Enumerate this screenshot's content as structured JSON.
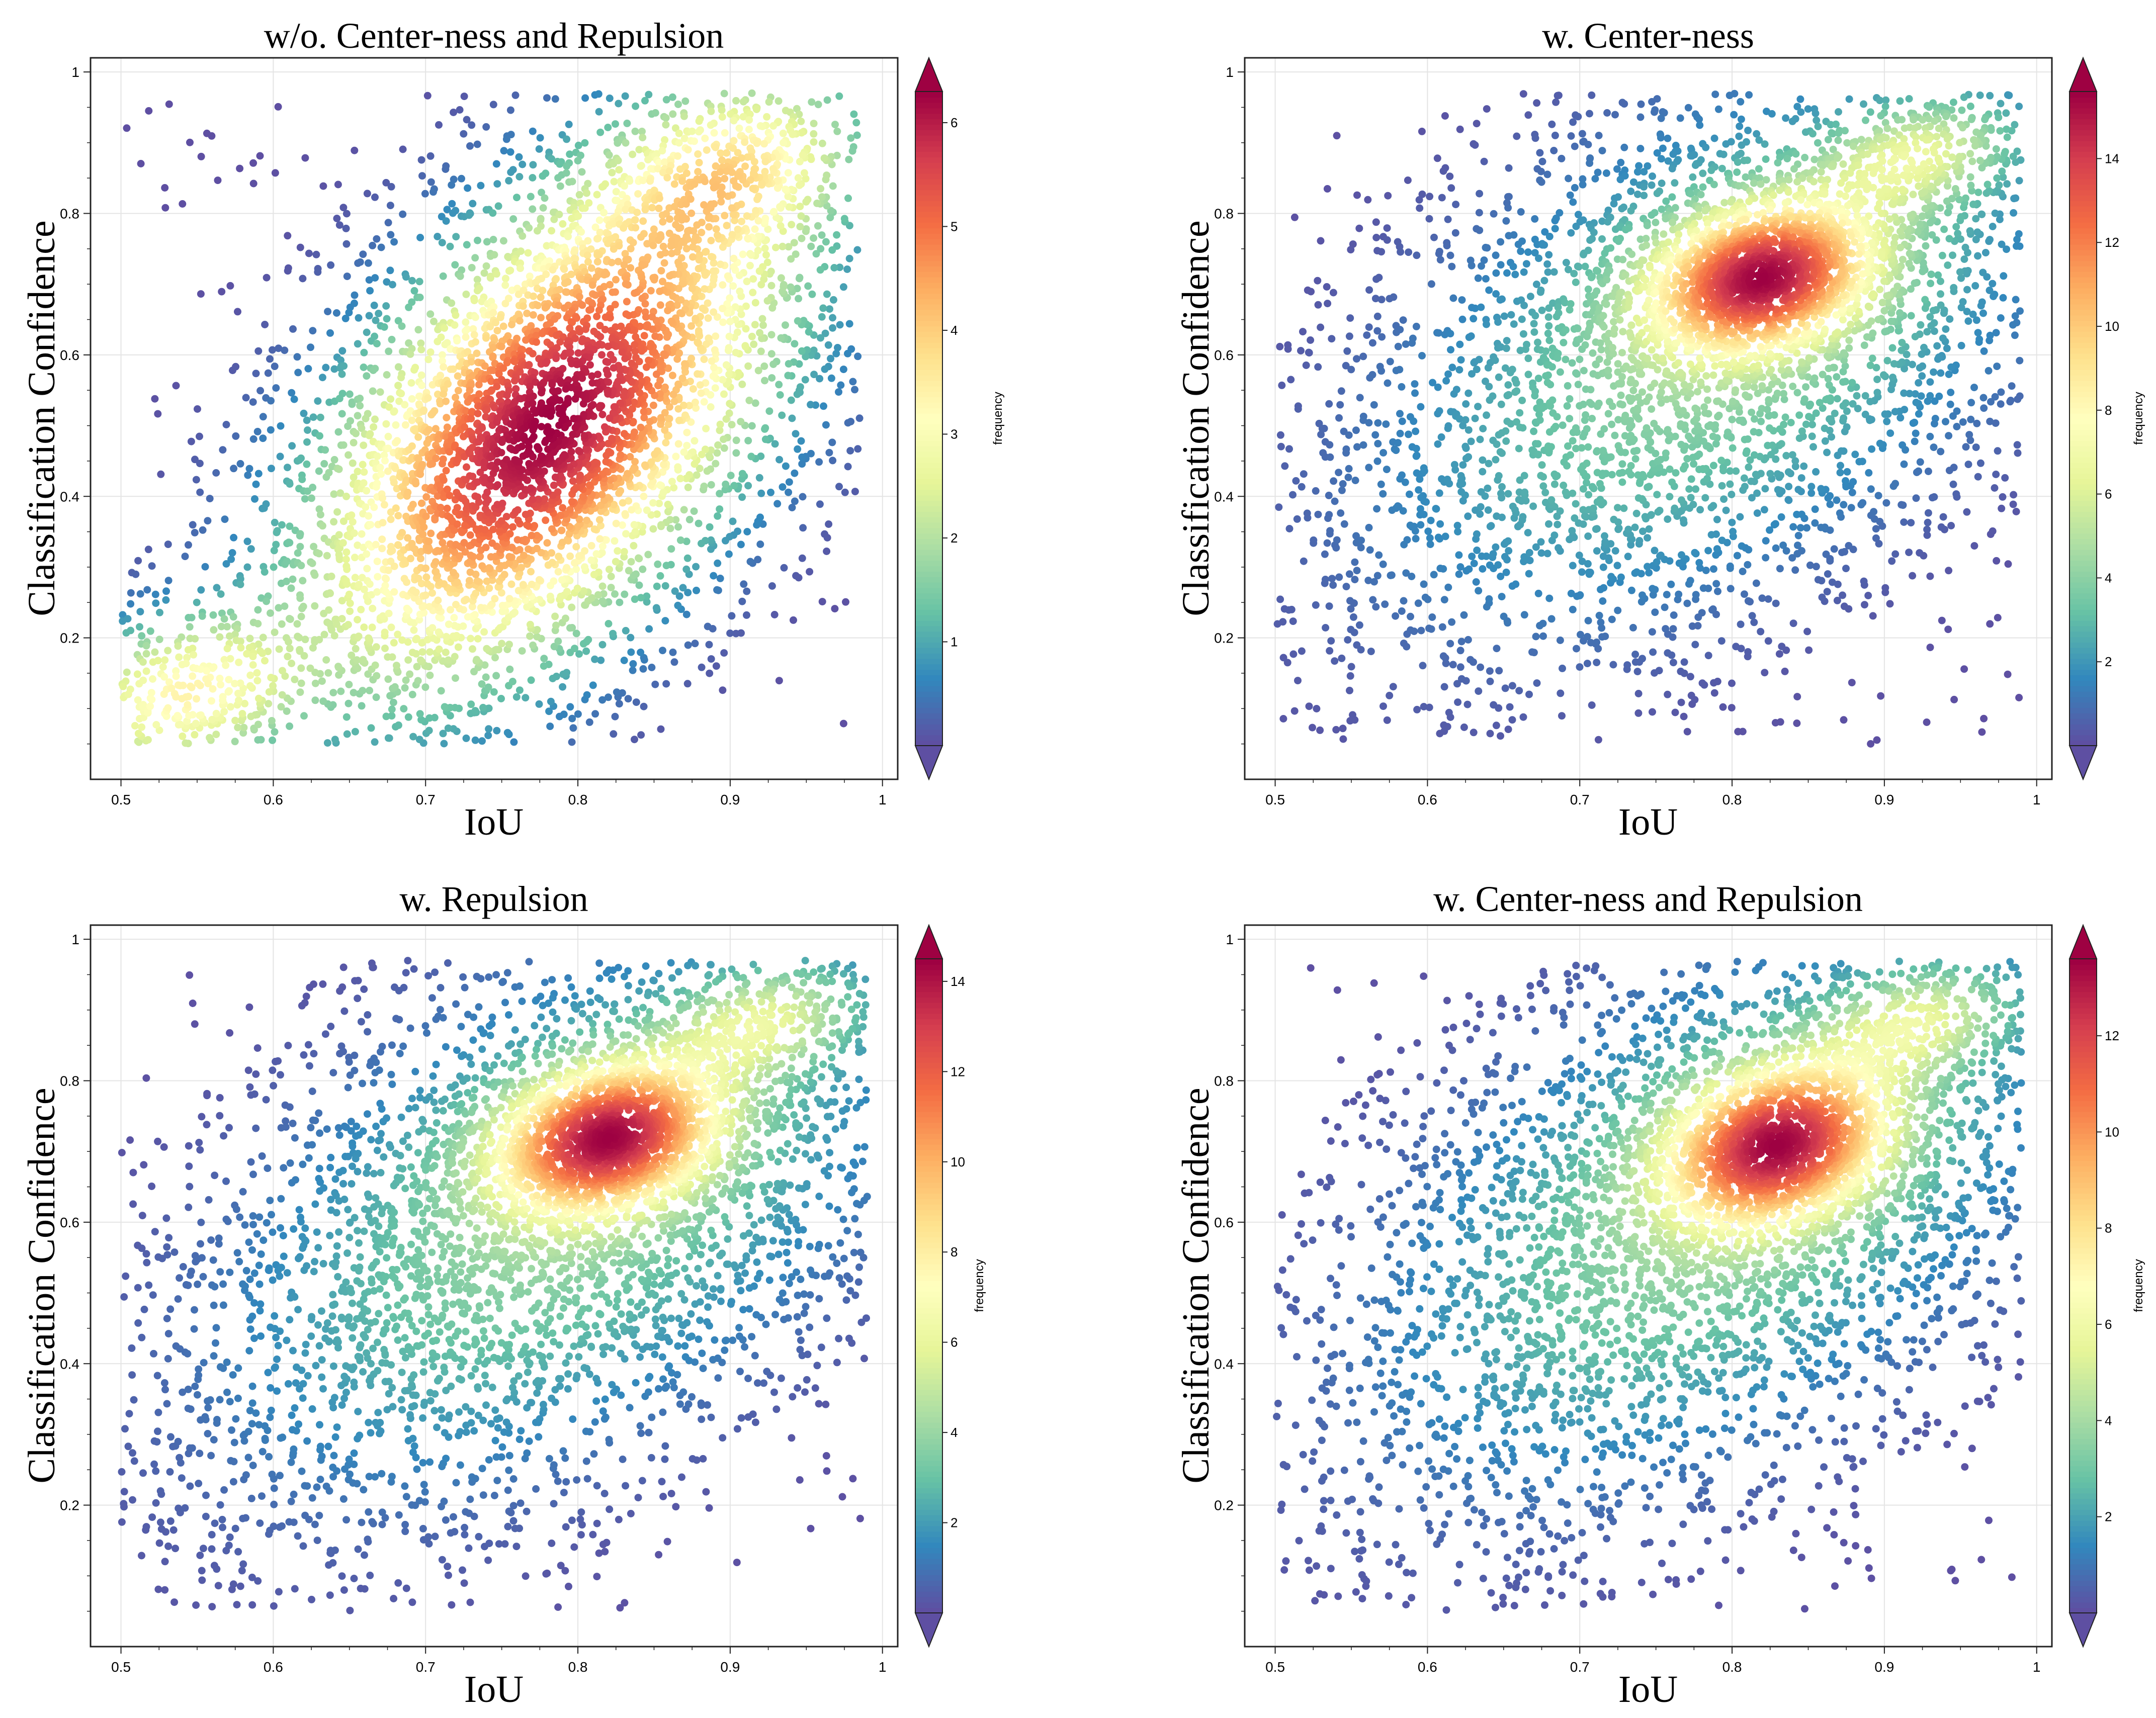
{
  "chart_data": [
    {
      "type": "scatter",
      "title": "w/o. Center-ness and Repulsion",
      "xlabel": "IoU",
      "ylabel": "Classification Confidence",
      "xlim": [
        0.48,
        1.01
      ],
      "ylim": [
        0.0,
        1.02
      ],
      "xticks": [
        "0.5",
        "0.6",
        "0.7",
        "0.8",
        "0.9",
        "1"
      ],
      "yticks": [
        "0.2",
        "0.4",
        "0.6",
        "0.8",
        "1"
      ],
      "grid": true,
      "colorbar": {
        "label": "frequency",
        "min": 0,
        "max": 6.3,
        "ticks": [
          "1",
          "2",
          "3",
          "4",
          "5",
          "6"
        ],
        "extend": "both"
      },
      "density_model": {
        "peak_frequency": 6.3,
        "clusters": [
          {
            "weight": 1.0,
            "mx": 0.78,
            "my": 0.5,
            "sx": 0.085,
            "sy": 0.2,
            "rho": 0.55
          },
          {
            "weight": 0.42,
            "mx": 0.54,
            "my": 0.12,
            "sx": 0.05,
            "sy": 0.07,
            "rho": 0.3
          },
          {
            "weight": 0.38,
            "mx": 0.9,
            "my": 0.86,
            "sx": 0.05,
            "sy": 0.08,
            "rho": 0.3
          }
        ],
        "x_range": [
          0.5,
          0.985
        ],
        "y_range": [
          0.05,
          0.97
        ]
      }
    },
    {
      "type": "scatter",
      "title": "w. Center-ness",
      "xlabel": "IoU",
      "ylabel": "Classification Confidence",
      "xlim": [
        0.48,
        1.01
      ],
      "ylim": [
        0.0,
        1.02
      ],
      "xticks": [
        "0.5",
        "0.6",
        "0.7",
        "0.8",
        "0.9",
        "1"
      ],
      "yticks": [
        "0.2",
        "0.4",
        "0.6",
        "0.8",
        "1"
      ],
      "grid": true,
      "colorbar": {
        "label": "frequency",
        "min": 0,
        "max": 15.6,
        "ticks": [
          "2",
          "4",
          "6",
          "8",
          "10",
          "12",
          "14"
        ],
        "extend": "both"
      },
      "density_model": {
        "peak_frequency": 15.6,
        "clusters": [
          {
            "weight": 1.0,
            "mx": 0.82,
            "my": 0.71,
            "sx": 0.045,
            "sy": 0.065,
            "rho": 0.25
          },
          {
            "weight": 0.22,
            "mx": 0.79,
            "my": 0.62,
            "sx": 0.12,
            "sy": 0.21,
            "rho": 0.5
          },
          {
            "weight": 0.3,
            "mx": 0.92,
            "my": 0.88,
            "sx": 0.04,
            "sy": 0.05,
            "rho": 0.3
          }
        ],
        "x_range": [
          0.5,
          0.99
        ],
        "y_range": [
          0.05,
          0.97
        ]
      }
    },
    {
      "type": "scatter",
      "title": "w. Repulsion",
      "xlabel": "IoU",
      "ylabel": "Classification Confidence",
      "xlim": [
        0.48,
        1.01
      ],
      "ylim": [
        0.0,
        1.02
      ],
      "xticks": [
        "0.5",
        "0.6",
        "0.7",
        "0.8",
        "0.9",
        "1"
      ],
      "yticks": [
        "0.2",
        "0.4",
        "0.6",
        "0.8",
        "1"
      ],
      "grid": true,
      "colorbar": {
        "label": "frequency",
        "min": 0,
        "max": 14.5,
        "ticks": [
          "2",
          "4",
          "6",
          "8",
          "10",
          "12",
          "14"
        ],
        "extend": "both"
      },
      "density_model": {
        "peak_frequency": 14.5,
        "clusters": [
          {
            "weight": 1.0,
            "mx": 0.82,
            "my": 0.72,
            "sx": 0.045,
            "sy": 0.065,
            "rho": 0.25
          },
          {
            "weight": 0.22,
            "mx": 0.79,
            "my": 0.62,
            "sx": 0.12,
            "sy": 0.21,
            "rho": 0.5
          },
          {
            "weight": 0.3,
            "mx": 0.92,
            "my": 0.88,
            "sx": 0.04,
            "sy": 0.05,
            "rho": 0.3
          }
        ],
        "x_range": [
          0.5,
          0.99
        ],
        "y_range": [
          0.05,
          0.97
        ]
      }
    },
    {
      "type": "scatter",
      "title": "w. Center-ness and Repulsion",
      "xlabel": "IoU",
      "ylabel": "Classification Confidence",
      "xlim": [
        0.48,
        1.01
      ],
      "ylim": [
        0.0,
        1.02
      ],
      "xticks": [
        "0.5",
        "0.6",
        "0.7",
        "0.8",
        "0.9",
        "1"
      ],
      "yticks": [
        "0.2",
        "0.4",
        "0.6",
        "0.8",
        "1"
      ],
      "grid": true,
      "colorbar": {
        "label": "frequency",
        "min": 0,
        "max": 13.6,
        "ticks": [
          "2",
          "4",
          "6",
          "8",
          "10",
          "12"
        ],
        "extend": "both"
      },
      "density_model": {
        "peak_frequency": 13.6,
        "clusters": [
          {
            "weight": 1.0,
            "mx": 0.83,
            "my": 0.71,
            "sx": 0.045,
            "sy": 0.07,
            "rho": 0.25
          },
          {
            "weight": 0.22,
            "mx": 0.79,
            "my": 0.62,
            "sx": 0.12,
            "sy": 0.21,
            "rho": 0.5
          },
          {
            "weight": 0.3,
            "mx": 0.92,
            "my": 0.88,
            "sx": 0.04,
            "sy": 0.05,
            "rho": 0.3
          }
        ],
        "x_range": [
          0.5,
          0.99
        ],
        "y_range": [
          0.05,
          0.97
        ]
      }
    }
  ],
  "colormap": {
    "name": "Spectral_r",
    "stops": [
      "#5e4fa2",
      "#3288bd",
      "#66c2a5",
      "#abdda4",
      "#e6f598",
      "#ffffbf",
      "#fee08b",
      "#fdae61",
      "#f46d43",
      "#d53e4f",
      "#9e0142"
    ]
  }
}
